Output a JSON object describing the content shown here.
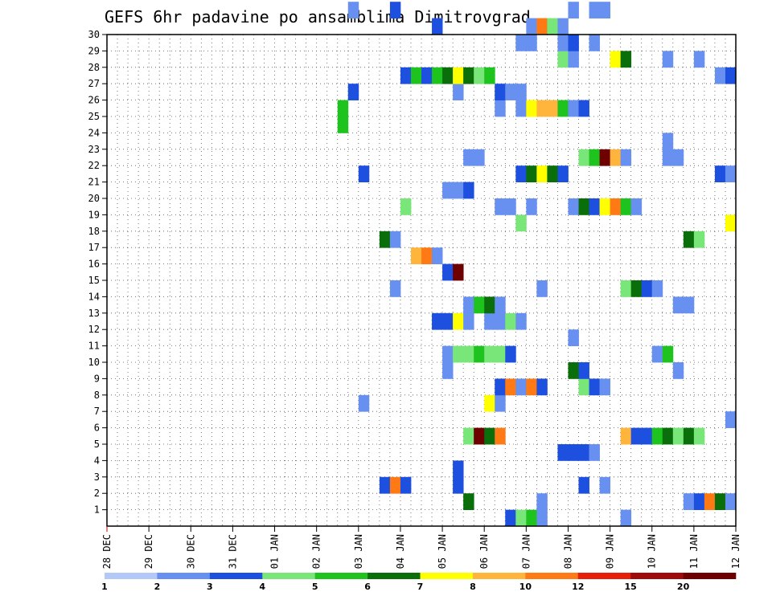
{
  "chart_data": {
    "type": "heatmap",
    "title": "GEFS 6hr padavine po ansamblima Dimitrovgrad",
    "xlabel": "",
    "ylabel": "",
    "x_ticks": [
      "28 DEC",
      "29 DEC",
      "30 DEC",
      "31 DEC",
      "01 JAN",
      "02 JAN",
      "03 JAN",
      "04 JAN",
      "05 JAN",
      "06 JAN",
      "07 JAN",
      "08 JAN",
      "09 JAN",
      "10 JAN",
      "11 JAN",
      "12 JAN"
    ],
    "y_ticks": [
      1,
      2,
      3,
      4,
      5,
      6,
      7,
      8,
      9,
      10,
      11,
      12,
      13,
      14,
      15,
      16,
      17,
      18,
      19,
      20,
      21,
      22,
      23,
      24,
      25,
      26,
      27,
      28,
      29,
      30
    ],
    "x_unit": "6-hour step from 28 DEC 00Z",
    "x_range": [
      0,
      60
    ],
    "y_range": [
      0,
      30
    ],
    "grid": true,
    "colorbar": {
      "tick_labels": [
        "1",
        "2",
        "3",
        "4",
        "5",
        "6",
        "7",
        "8",
        "10",
        "12",
        "15",
        "20"
      ],
      "colors": [
        "#b4c8f8",
        "#6890f0",
        "#1e50e0",
        "#78e678",
        "#1ec31e",
        "#0a6e0a",
        "#ffff00",
        "#ffb43c",
        "#ff7a14",
        "#e61e0a",
        "#a00a0a",
        "#6e0000"
      ]
    },
    "cells": [
      [
        38,
        0,
        2
      ],
      [
        39,
        0,
        3
      ],
      [
        40,
        0,
        4
      ],
      [
        41,
        0,
        1
      ],
      [
        49,
        0,
        1
      ],
      [
        34,
        1,
        5
      ],
      [
        41,
        1,
        1
      ],
      [
        55,
        1,
        1
      ],
      [
        56,
        1,
        2
      ],
      [
        57,
        1,
        8
      ],
      [
        58,
        1,
        5
      ],
      [
        59,
        1,
        1
      ],
      [
        26,
        2,
        2
      ],
      [
        27,
        2,
        8
      ],
      [
        28,
        2,
        2
      ],
      [
        33,
        2,
        2
      ],
      [
        45,
        2,
        2
      ],
      [
        47,
        2,
        1
      ],
      [
        33,
        3,
        2
      ],
      [
        43,
        4,
        2
      ],
      [
        44,
        4,
        2
      ],
      [
        45,
        4,
        2
      ],
      [
        46,
        4,
        1
      ],
      [
        34,
        5,
        3
      ],
      [
        35,
        5,
        11
      ],
      [
        36,
        5,
        5
      ],
      [
        37,
        5,
        8
      ],
      [
        49,
        5,
        7
      ],
      [
        50,
        5,
        2
      ],
      [
        51,
        5,
        2
      ],
      [
        52,
        5,
        4
      ],
      [
        53,
        5,
        5
      ],
      [
        54,
        5,
        3
      ],
      [
        55,
        5,
        5
      ],
      [
        56,
        5,
        3
      ],
      [
        59,
        6,
        1
      ],
      [
        24,
        7,
        1
      ],
      [
        36,
        7,
        6
      ],
      [
        37,
        7,
        1
      ],
      [
        37,
        8,
        2
      ],
      [
        38,
        8,
        8
      ],
      [
        39,
        8,
        1
      ],
      [
        40,
        8,
        8
      ],
      [
        41,
        8,
        2
      ],
      [
        45,
        8,
        3
      ],
      [
        46,
        8,
        2
      ],
      [
        47,
        8,
        1
      ],
      [
        32,
        9,
        1
      ],
      [
        44,
        9,
        5
      ],
      [
        45,
        9,
        2
      ],
      [
        54,
        9,
        1
      ],
      [
        32,
        10,
        1
      ],
      [
        33,
        10,
        3
      ],
      [
        34,
        10,
        3
      ],
      [
        35,
        10,
        4
      ],
      [
        36,
        10,
        3
      ],
      [
        37,
        10,
        3
      ],
      [
        38,
        10,
        2
      ],
      [
        52,
        10,
        1
      ],
      [
        53,
        10,
        4
      ],
      [
        44,
        11,
        1
      ],
      [
        31,
        12,
        2
      ],
      [
        32,
        12,
        2
      ],
      [
        33,
        12,
        6
      ],
      [
        34,
        12,
        1
      ],
      [
        36,
        12,
        1
      ],
      [
        37,
        12,
        1
      ],
      [
        38,
        12,
        3
      ],
      [
        39,
        12,
        1
      ],
      [
        34,
        13,
        1
      ],
      [
        35,
        13,
        4
      ],
      [
        36,
        13,
        5
      ],
      [
        37,
        13,
        1
      ],
      [
        54,
        13,
        1
      ],
      [
        55,
        13,
        1
      ],
      [
        27,
        14,
        1
      ],
      [
        41,
        14,
        1
      ],
      [
        49,
        14,
        3
      ],
      [
        50,
        14,
        5
      ],
      [
        51,
        14,
        2
      ],
      [
        52,
        14,
        1
      ],
      [
        32,
        15,
        2
      ],
      [
        33,
        15,
        11
      ],
      [
        29,
        16,
        7
      ],
      [
        30,
        16,
        8
      ],
      [
        31,
        16,
        1
      ],
      [
        26,
        17,
        5
      ],
      [
        27,
        17,
        1
      ],
      [
        55,
        17,
        5
      ],
      [
        56,
        17,
        3
      ],
      [
        39,
        18,
        3
      ],
      [
        59,
        18,
        6
      ],
      [
        28,
        19,
        3
      ],
      [
        37,
        19,
        1
      ],
      [
        38,
        19,
        1
      ],
      [
        40,
        19,
        1
      ],
      [
        44,
        19,
        1
      ],
      [
        45,
        19,
        5
      ],
      [
        46,
        19,
        2
      ],
      [
        47,
        19,
        6
      ],
      [
        48,
        19,
        8
      ],
      [
        49,
        19,
        4
      ],
      [
        50,
        19,
        1
      ],
      [
        32,
        20,
        1
      ],
      [
        33,
        20,
        1
      ],
      [
        34,
        20,
        2
      ],
      [
        24,
        21,
        2
      ],
      [
        39,
        21,
        2
      ],
      [
        40,
        21,
        5
      ],
      [
        41,
        21,
        6
      ],
      [
        42,
        21,
        5
      ],
      [
        43,
        21,
        2
      ],
      [
        58,
        21,
        2
      ],
      [
        59,
        21,
        1
      ],
      [
        34,
        22,
        1
      ],
      [
        35,
        22,
        1
      ],
      [
        45,
        22,
        3
      ],
      [
        46,
        22,
        4
      ],
      [
        47,
        22,
        11
      ],
      [
        48,
        22,
        7
      ],
      [
        49,
        22,
        1
      ],
      [
        53,
        22,
        1
      ],
      [
        54,
        22,
        1
      ],
      [
        53,
        23,
        1
      ],
      [
        22,
        24,
        4
      ],
      [
        22,
        25,
        4
      ],
      [
        37,
        25,
        1
      ],
      [
        39,
        25,
        1
      ],
      [
        40,
        25,
        6
      ],
      [
        41,
        25,
        7
      ],
      [
        42,
        25,
        7
      ],
      [
        43,
        25,
        4
      ],
      [
        44,
        25,
        1
      ],
      [
        45,
        25,
        2
      ],
      [
        23,
        26,
        2
      ],
      [
        33,
        26,
        1
      ],
      [
        37,
        26,
        2
      ],
      [
        38,
        26,
        1
      ],
      [
        39,
        26,
        1
      ],
      [
        28,
        27,
        2
      ],
      [
        29,
        27,
        4
      ],
      [
        30,
        27,
        2
      ],
      [
        31,
        27,
        4
      ],
      [
        32,
        27,
        5
      ],
      [
        33,
        27,
        6
      ],
      [
        34,
        27,
        5
      ],
      [
        35,
        27,
        3
      ],
      [
        36,
        27,
        4
      ],
      [
        58,
        27,
        1
      ],
      [
        59,
        27,
        2
      ],
      [
        43,
        28,
        3
      ],
      [
        44,
        28,
        1
      ],
      [
        48,
        28,
        6
      ],
      [
        49,
        28,
        5
      ],
      [
        53,
        28,
        1
      ],
      [
        56,
        28,
        1
      ],
      [
        39,
        29,
        1
      ],
      [
        40,
        29,
        1
      ],
      [
        43,
        29,
        1
      ],
      [
        44,
        29,
        2
      ],
      [
        46,
        29,
        1
      ],
      [
        31,
        30,
        2
      ],
      [
        40,
        30,
        1
      ],
      [
        41,
        30,
        8
      ],
      [
        42,
        30,
        3
      ],
      [
        43,
        30,
        1
      ],
      [
        23,
        31,
        1
      ],
      [
        27,
        31,
        2
      ],
      [
        44,
        31,
        1
      ],
      [
        46,
        31,
        1
      ],
      [
        47,
        31,
        1
      ]
    ]
  }
}
